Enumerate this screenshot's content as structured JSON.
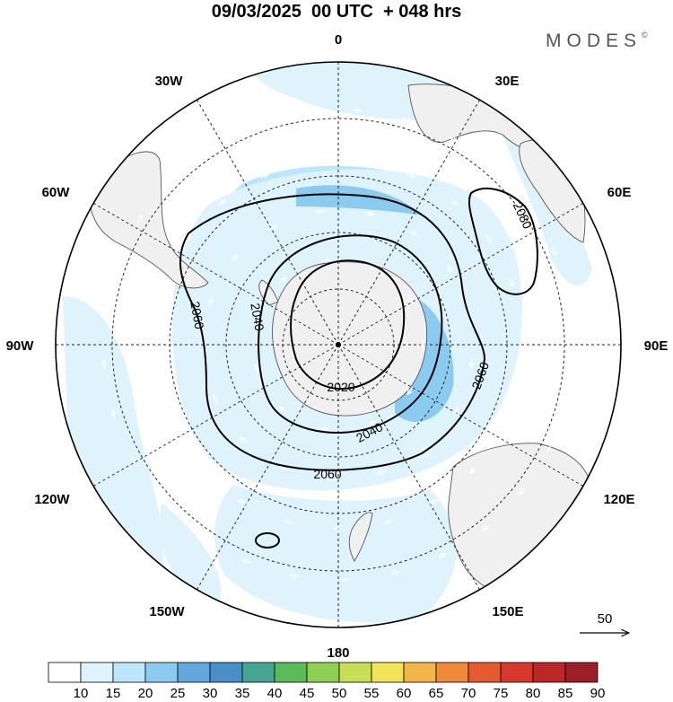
{
  "header": {
    "title": "09/03/2025  00 UTC  + 048 hrs",
    "brand": "MODES",
    "brand_mark": "©"
  },
  "map": {
    "projection": "south-polar-stereographic",
    "longitude_labels": [
      {
        "text": "0",
        "deg": 0
      },
      {
        "text": "30E",
        "deg": 30
      },
      {
        "text": "60E",
        "deg": 60
      },
      {
        "text": "90E",
        "deg": 90
      },
      {
        "text": "120E",
        "deg": 120
      },
      {
        "text": "150E",
        "deg": 150
      },
      {
        "text": "180",
        "deg": 180
      },
      {
        "text": "150W",
        "deg": 210
      },
      {
        "text": "120W",
        "deg": 240
      },
      {
        "text": "90W",
        "deg": 270
      },
      {
        "text": "60W",
        "deg": 300
      },
      {
        "text": "30W",
        "deg": 330
      }
    ],
    "contour_labels": [
      "2020",
      "2040",
      "2060",
      "2080"
    ],
    "vector_reference": "50",
    "land_color": "#f0f0f0",
    "coast_color": "#555555"
  },
  "colorbar": {
    "labels": [
      "10",
      "15",
      "20",
      "25",
      "30",
      "35",
      "40",
      "45",
      "50",
      "55",
      "60",
      "65",
      "70",
      "75",
      "80",
      "85",
      "90"
    ],
    "colors": [
      "#ffffff",
      "#dff3fd",
      "#bce6fb",
      "#8ccbf0",
      "#62a8dc",
      "#4a8ec8",
      "#46a592",
      "#5bbb5a",
      "#8fd054",
      "#c8df55",
      "#f3e356",
      "#f4b548",
      "#ef8a3c",
      "#e55a30",
      "#d8382c",
      "#bd2628",
      "#9b1f24"
    ]
  }
}
